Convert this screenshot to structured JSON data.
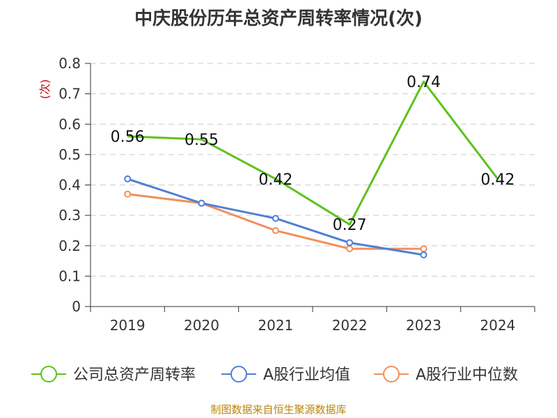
{
  "title": "中庆股份历年总资产周转率情况(次)",
  "source": "制图数据来自恒生聚源数据库",
  "chart_data": {
    "type": "line",
    "title": "中庆股份历年总资产周转率情况(次)",
    "ylabel": "(次)",
    "ylim": [
      0,
      0.8
    ],
    "yticks": [
      "0",
      "0.1",
      "0.2",
      "0.3",
      "0.4",
      "0.5",
      "0.6",
      "0.7",
      "0.8"
    ],
    "categories": [
      "2019",
      "2020",
      "2021",
      "2022",
      "2023",
      "2024"
    ],
    "grid": true,
    "legend_position": "bottom",
    "series": [
      {
        "name": "公司总资产周转率",
        "color": "#5cc21c",
        "values": [
          0.56,
          0.55,
          0.42,
          0.27,
          0.74,
          0.42
        ],
        "labels": true
      },
      {
        "name": "A股行业均值",
        "color": "#4f7fd6",
        "values": [
          0.42,
          0.34,
          0.29,
          0.21,
          0.17,
          null
        ],
        "labels": false
      },
      {
        "name": "A股行业中位数",
        "color": "#f0905a",
        "values": [
          0.37,
          0.34,
          0.25,
          0.19,
          0.19,
          null
        ],
        "labels": false
      }
    ]
  }
}
